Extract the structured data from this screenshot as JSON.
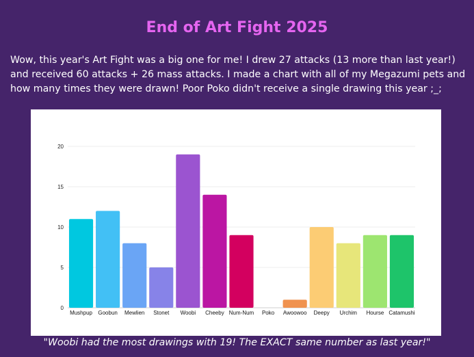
{
  "page": {
    "title": "End of Art Fight 2025",
    "intro": "Wow, this year's Art Fight was a big one for me! I drew 27 attacks (13 more than last year!) and received 60 attacks + 26 mass attacks. I made a chart with all of my Megazumi pets and how many times they were drawn! Poor Poko didn't receive a single drawing this year ;_;",
    "caption": "\"Woobi had the most drawings with 19! The EXACT same number as last year!\""
  },
  "colors": {
    "background": "#45246a",
    "title": "#e565f0",
    "text": "#ffffff",
    "chart_background": "#ffffff"
  },
  "chart_data": {
    "type": "bar",
    "title": "",
    "xlabel": "",
    "ylabel": "",
    "ylim": [
      0,
      20
    ],
    "yticks": [
      0,
      5,
      10,
      15,
      20
    ],
    "grid": true,
    "categories": [
      "Mushpup",
      "Goobun",
      "Mewlien",
      "Stonet",
      "Woobi",
      "Cheeby",
      "Num-Num",
      "Poko",
      "Awoowoo",
      "Deepy",
      "Urchim",
      "Hourse",
      "Catamushi"
    ],
    "values": [
      11,
      12,
      8,
      5,
      19,
      14,
      9,
      0,
      1,
      10,
      8,
      9,
      9
    ],
    "bar_colors": [
      "#00c8e0",
      "#42c0f5",
      "#6aa5f5",
      "#8783e8",
      "#9b54d0",
      "#bb16a3",
      "#d3005f",
      "#cccccc",
      "#f0924f",
      "#fccc74",
      "#e7e67a",
      "#9de570",
      "#1ec46a"
    ]
  }
}
